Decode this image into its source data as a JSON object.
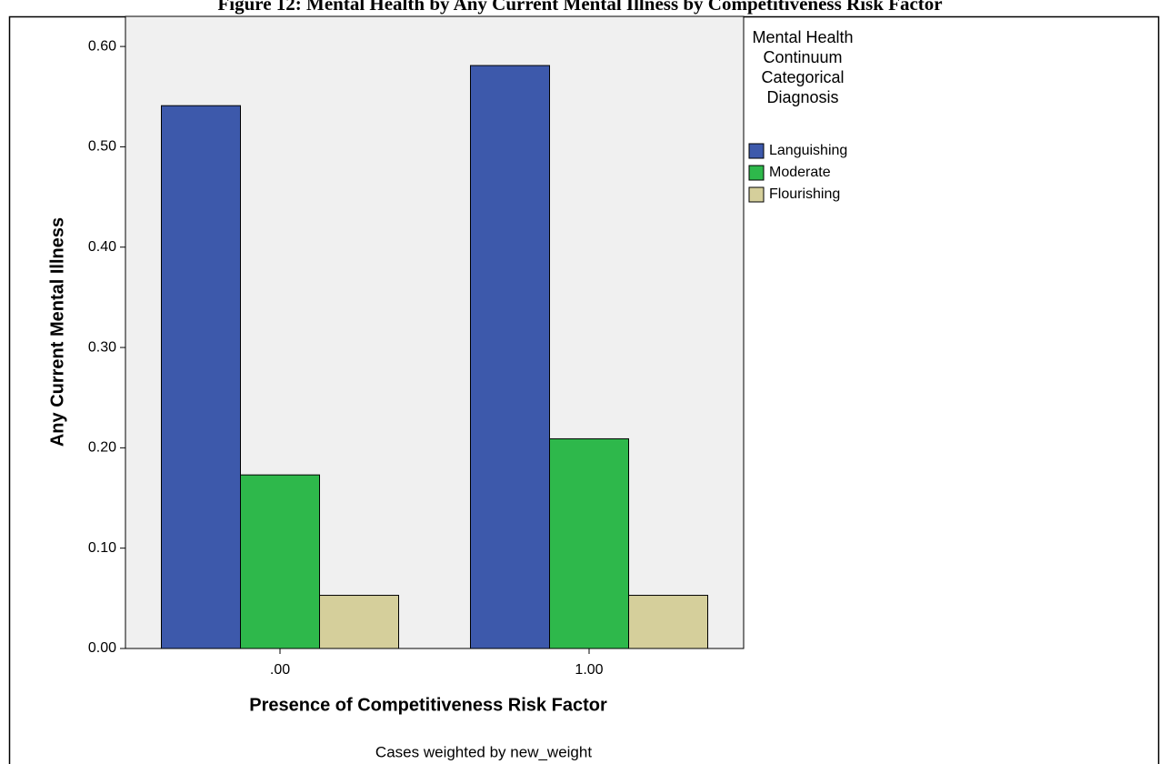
{
  "chart_data": {
    "type": "bar",
    "title": "Figure 12: Mental Health by Any Current Mental Illness by Competitiveness Risk Factor",
    "x_label": "Presence of Competitiveness Risk Factor",
    "y_label": "Any Current Mental Illness",
    "footnote": "Cases weighted by new_weight",
    "legend_title": "Mental Health Continuum Categorical Diagnosis",
    "categories": [
      ".00",
      "1.00"
    ],
    "series": [
      {
        "name": "Languishing",
        "color": "#3d59ab",
        "values": [
          0.541,
          0.581
        ]
      },
      {
        "name": "Moderate",
        "color": "#2eb84b",
        "values": [
          0.173,
          0.209
        ]
      },
      {
        "name": "Flourishing",
        "color": "#d5cf9b",
        "values": [
          0.053,
          0.053
        ]
      }
    ],
    "ylim": [
      0,
      0.63
    ],
    "yticks": [
      {
        "value": 0,
        "label": "0.00"
      },
      {
        "value": 0.1,
        "label": "0.10"
      },
      {
        "value": 0.2,
        "label": "0.20"
      },
      {
        "value": 0.3,
        "label": "0.30"
      },
      {
        "value": 0.4,
        "label": "0.40"
      },
      {
        "value": 0.5,
        "label": "0.50"
      },
      {
        "value": 0.6,
        "label": "0.60"
      }
    ],
    "plot_background": "#f0f0f0"
  }
}
